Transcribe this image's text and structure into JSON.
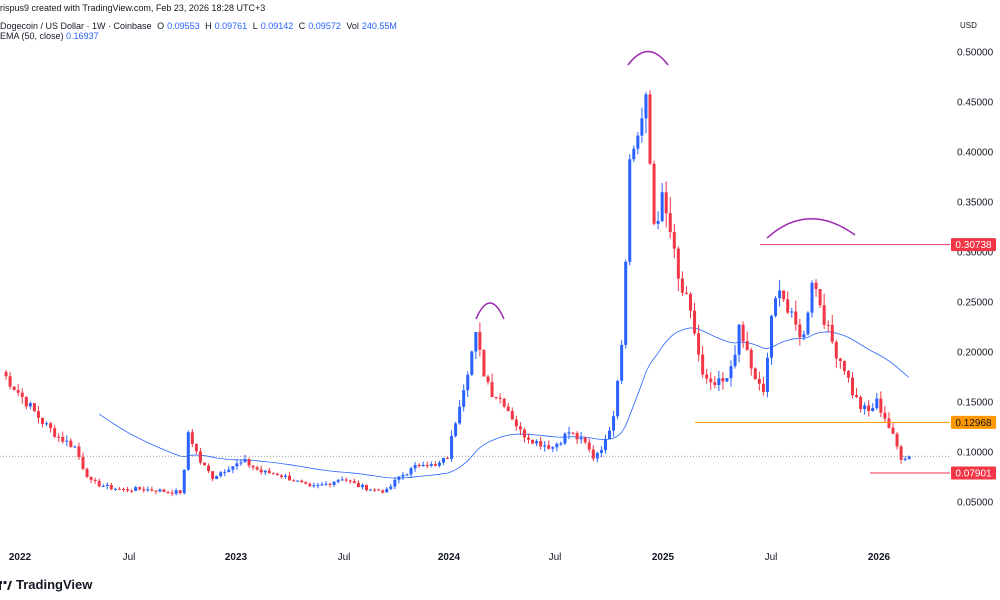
{
  "header": {
    "created_line": "rispus9 created with TradingView.com, Feb 23, 2026 18:28 UTC+3",
    "symbol": "Dogecoin / US Dollar · 1W · Coinbase",
    "o_label": "O",
    "o_value": "0.09553",
    "h_label": "H",
    "h_value": "0.09761",
    "l_label": "L",
    "l_value": "0.09142",
    "c_label": "C",
    "c_value": "0.09572",
    "vol_label": "Vol",
    "vol_value": "240.55M",
    "ema_label": "EMA (50, close)",
    "ema_value": "0.16937",
    "currency": "USD"
  },
  "footer": {
    "brand": "TradingView"
  },
  "colors": {
    "up": "#2962ff",
    "down": "#f23645",
    "ema": "#2962ff",
    "hline_top": "#e0357a",
    "hline_support": "#ff9800",
    "hline_low": "#f23645",
    "arcs": "#9c27b0"
  },
  "chart_data": {
    "type": "candlestick",
    "title": "Dogecoin / US Dollar · 1W · Coinbase",
    "xlabel": "",
    "ylabel": "USD",
    "y_ticks": [
      "0.05000",
      "0.10000",
      "0.15000",
      "0.20000",
      "0.25000",
      "0.30000",
      "0.35000",
      "0.40000",
      "0.45000",
      "0.50000"
    ],
    "x_ticks": [
      "2022",
      "Jul",
      "2023",
      "Jul",
      "2024",
      "Jul",
      "2025",
      "Jul",
      "2026"
    ],
    "ylim": [
      0.025,
      0.525
    ],
    "price_labels": [
      {
        "value": 0.30738,
        "text": "0.30738",
        "color": "#f23645"
      },
      {
        "value": 0.12968,
        "text": "0.12968",
        "color": "#ff9800"
      },
      {
        "value": 0.07901,
        "text": "0.07901",
        "color": "#f23645"
      }
    ],
    "key_closes": [
      {
        "date": "2022-01",
        "close": 0.17
      },
      {
        "date": "2022-06",
        "close": 0.065
      },
      {
        "date": "2022-11",
        "close": 0.11
      },
      {
        "date": "2023-07",
        "close": 0.07
      },
      {
        "date": "2023-10",
        "close": 0.06
      },
      {
        "date": "2024-03",
        "close": 0.22
      },
      {
        "date": "2024-09",
        "close": 0.1
      },
      {
        "date": "2024-12",
        "close": 0.46
      },
      {
        "date": "2025-04",
        "close": 0.15
      },
      {
        "date": "2025-08",
        "close": 0.25
      },
      {
        "date": "2026-02",
        "close": 0.09572
      }
    ],
    "grid": false,
    "legend": "top-left"
  }
}
